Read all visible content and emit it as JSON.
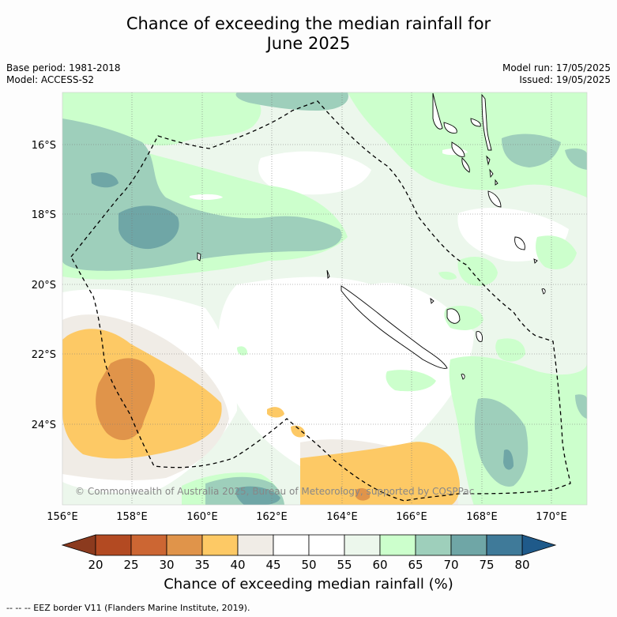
{
  "header": {
    "title_line1": "Chance of exceeding the median rainfall for",
    "title_line2": "June 2025",
    "base_period": "Base period: 1981-2018",
    "model": "Model: ACCESS-S2",
    "model_run": "Model run: 17/05/2025",
    "issued": "Issued: 19/05/2025"
  },
  "map": {
    "lat_labels": [
      "16°S",
      "18°S",
      "20°S",
      "22°S",
      "24°S"
    ],
    "lon_labels": [
      "156°E",
      "158°E",
      "160°E",
      "162°E",
      "164°E",
      "166°E",
      "168°E",
      "170°E"
    ],
    "copyright": "© Commonwealth of Australia 2025, Bureau of Meteorology, supported by COSPPac"
  },
  "colorbar": {
    "ticks": [
      "20",
      "25",
      "30",
      "35",
      "40",
      "45",
      "50",
      "55",
      "60",
      "65",
      "70",
      "75",
      "80"
    ],
    "colors": [
      "#b34a22",
      "#cc6633",
      "#e0944a",
      "#fdc965",
      "#f0ece6",
      "#ffffff",
      "#ffffff",
      "#ecf7ec",
      "#ccffcc",
      "#9ecfbb",
      "#6fa6a6",
      "#3f7a99"
    ],
    "low_color": "#8b3a1e",
    "high_color": "#1f5a8a",
    "label": "Chance of exceeding median rainfall (%)"
  },
  "footer": {
    "eez_note": "--  --  -- EEZ border V11 (Flanders Marine Institute, 2019)."
  }
}
